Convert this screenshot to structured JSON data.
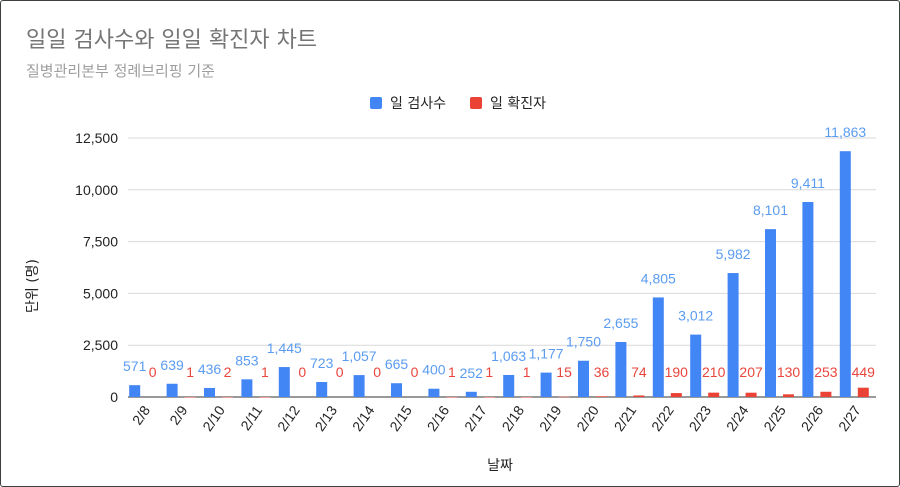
{
  "chart_data": {
    "type": "bar",
    "title": "일일 검사수와 일일 확진자 차트",
    "subtitle": "질병관리본부 정례브리핑 기준",
    "xlabel": "날짜",
    "ylabel": "단위 (명)",
    "ylim": [
      0,
      12500
    ],
    "yticks": [
      "0",
      "2,500",
      "5,000",
      "7,500",
      "10,000",
      "12,500"
    ],
    "ytick_values": [
      0,
      2500,
      5000,
      7500,
      10000,
      12500
    ],
    "grid": true,
    "legend_position": "top",
    "categories": [
      "2/8",
      "2/9",
      "2/10",
      "2/11",
      "2/12",
      "2/13",
      "2/14",
      "2/15",
      "2/16",
      "2/17",
      "2/18",
      "2/19",
      "2/20",
      "2/21",
      "2/22",
      "2/23",
      "2/24",
      "2/25",
      "2/26",
      "2/27"
    ],
    "series": [
      {
        "name": "일 검사수",
        "color": "#4285f4",
        "label_color": "#5b9cf0",
        "values": [
          571,
          639,
          436,
          853,
          1445,
          723,
          1057,
          665,
          400,
          252,
          1063,
          1177,
          1750,
          2655,
          4805,
          3012,
          5982,
          8101,
          9411,
          11863
        ],
        "labels": [
          "571",
          "639",
          "436",
          "853",
          "1,445",
          "723",
          "1,057",
          "665",
          "400",
          "252",
          "1,063",
          "1,177",
          "1,750",
          "2,655",
          "4,805",
          "3,012",
          "5,982",
          "8,101",
          "9,411",
          "11,863"
        ]
      },
      {
        "name": "일 확진자",
        "color": "#ea4335",
        "label_color": "#e8453c",
        "values": [
          0,
          1,
          2,
          1,
          0,
          0,
          0,
          0,
          1,
          1,
          1,
          15,
          36,
          74,
          190,
          210,
          207,
          130,
          253,
          449
        ],
        "labels": [
          "0",
          "1",
          "2",
          "1",
          "0",
          "0",
          "0",
          "0",
          "1",
          "1",
          "1",
          "15",
          "36",
          "74",
          "190",
          "210",
          "207",
          "130",
          "253",
          "449"
        ]
      }
    ]
  }
}
